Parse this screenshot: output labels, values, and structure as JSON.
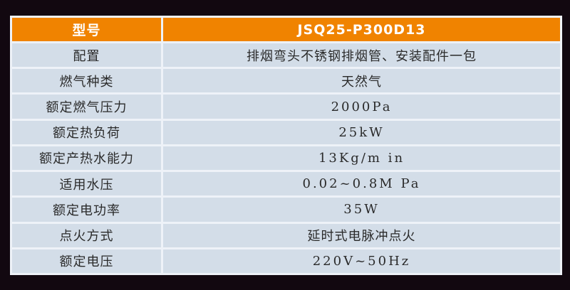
{
  "header": {
    "label": "型号",
    "value": "JSQ25-P300D13"
  },
  "rows": [
    {
      "label": "配置",
      "value": "排烟弯头不锈钢排烟管、安装配件一包"
    },
    {
      "label": "燃气种类",
      "value": "天然气"
    },
    {
      "label": "额定燃气压力",
      "value": "2000Pa"
    },
    {
      "label": "额定热负荷",
      "value": "25kW"
    },
    {
      "label": "额定产热水能力",
      "value": "13Kg/m in"
    },
    {
      "label": "适用水压",
      "value": "0.02~0.8M Pa"
    },
    {
      "label": "额定电功率",
      "value": "35W"
    },
    {
      "label": "点火方式",
      "value": "延时式电脉冲点火"
    },
    {
      "label": "额定电压",
      "value": "220V~50Hz"
    }
  ],
  "colors": {
    "header": "#f08300",
    "cell": "#d3dde8",
    "background": "#120810"
  }
}
